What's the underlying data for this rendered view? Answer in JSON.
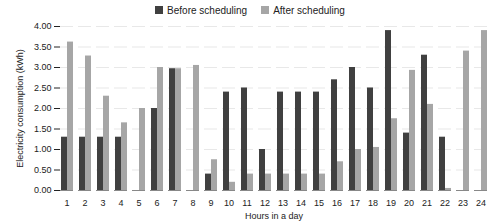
{
  "chart_data": {
    "type": "bar",
    "x_label": "Hours in a day",
    "y_label": "Electricity consumption (kWh)",
    "categories": [
      1,
      2,
      3,
      4,
      5,
      6,
      7,
      8,
      9,
      10,
      11,
      12,
      13,
      14,
      15,
      16,
      17,
      18,
      19,
      20,
      21,
      22,
      23,
      24
    ],
    "series": [
      {
        "name": "Before scheduling",
        "color": "#404040",
        "values": [
          1.3,
          1.3,
          1.3,
          1.3,
          0,
          2.0,
          2.97,
          0,
          0.4,
          2.4,
          2.5,
          1.0,
          2.4,
          2.4,
          2.4,
          2.7,
          3.0,
          2.5,
          3.9,
          1.4,
          3.3,
          1.3,
          0,
          0
        ]
      },
      {
        "name": "After scheduling",
        "color": "#a6a6a6",
        "values": [
          3.62,
          3.28,
          2.3,
          1.65,
          2.0,
          3.0,
          2.97,
          3.05,
          0.75,
          0.2,
          0.4,
          0.4,
          0.4,
          0.4,
          0.4,
          0.7,
          1.0,
          1.05,
          1.75,
          2.93,
          2.1,
          0.05,
          3.4,
          3.9
        ]
      }
    ],
    "ylim": [
      0,
      4
    ],
    "yticks": [
      {
        "value": 0,
        "label": "0.00"
      },
      {
        "value": 0.5,
        "label": "0.50"
      },
      {
        "value": 1,
        "label": "1.00"
      },
      {
        "value": 1.5,
        "label": "1.50"
      },
      {
        "value": 2,
        "label": "2.00"
      },
      {
        "value": 2.5,
        "label": "2.50"
      },
      {
        "value": 3,
        "label": "3.00"
      },
      {
        "value": 3.5,
        "label": "3.50"
      },
      {
        "value": 4,
        "label": "4.00"
      }
    ],
    "grid": true,
    "legend": "top"
  }
}
